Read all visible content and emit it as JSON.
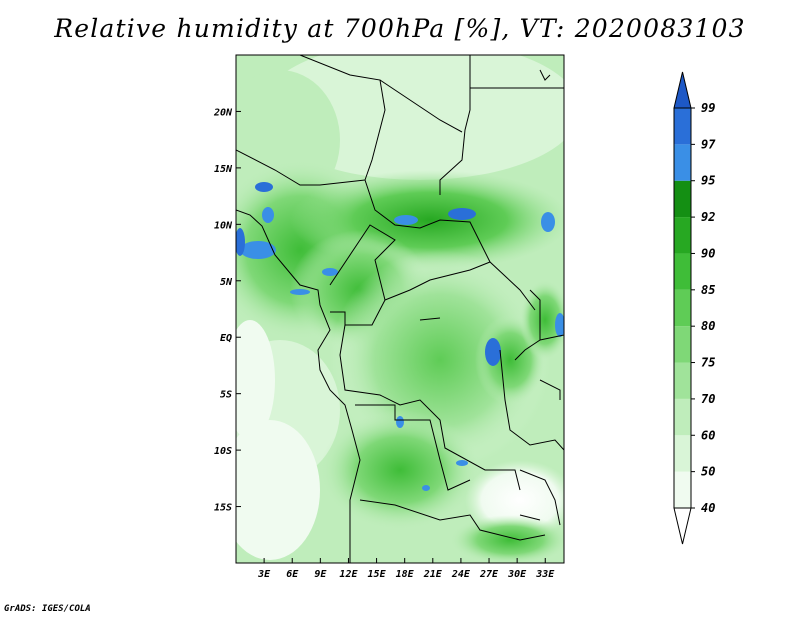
{
  "title": "Relative humidity at 700hPa [%], VT: 2020083103",
  "credit": "GrADS: IGES/COLA",
  "chart_data": {
    "type": "heatmap",
    "variable": "Relative humidity",
    "level": "700hPa",
    "unit": "%",
    "valid_time": "2020083103",
    "xlim": [
      0,
      35
    ],
    "ylim": [
      -20,
      25
    ],
    "x_ticks": [
      {
        "value": 3,
        "label": "3E"
      },
      {
        "value": 6,
        "label": "6E"
      },
      {
        "value": 9,
        "label": "9E"
      },
      {
        "value": 12,
        "label": "12E"
      },
      {
        "value": 15,
        "label": "15E"
      },
      {
        "value": 18,
        "label": "18E"
      },
      {
        "value": 21,
        "label": "21E"
      },
      {
        "value": 24,
        "label": "24E"
      },
      {
        "value": 27,
        "label": "27E"
      },
      {
        "value": 30,
        "label": "30E"
      },
      {
        "value": 33,
        "label": "33E"
      }
    ],
    "y_ticks": [
      {
        "value": 20,
        "label": "20N"
      },
      {
        "value": 15,
        "label": "15N"
      },
      {
        "value": 10,
        "label": "10N"
      },
      {
        "value": 5,
        "label": "5N"
      },
      {
        "value": 0,
        "label": "EQ"
      },
      {
        "value": -5,
        "label": "5S"
      },
      {
        "value": -10,
        "label": "10S"
      },
      {
        "value": -15,
        "label": "15S"
      }
    ],
    "colorbar": {
      "levels": [
        {
          "label": "40",
          "color": "#f0fbf0"
        },
        {
          "label": "50",
          "color": "#d9f5d7"
        },
        {
          "label": "60",
          "color": "#bfedbb"
        },
        {
          "label": "70",
          "color": "#a0e39a"
        },
        {
          "label": "75",
          "color": "#7fd877"
        },
        {
          "label": "80",
          "color": "#5fcc56"
        },
        {
          "label": "85",
          "color": "#3fbd38"
        },
        {
          "label": "90",
          "color": "#27a822"
        },
        {
          "label": "92",
          "color": "#148f13"
        },
        {
          "label": "95",
          "color": "#3a8fe6"
        },
        {
          "label": "97",
          "color": "#2a6fd8"
        },
        {
          "label": "99",
          "color": "#1d58c6"
        }
      ],
      "top_color": "#1d58c6",
      "bottom_color": "#ffffff"
    }
  }
}
